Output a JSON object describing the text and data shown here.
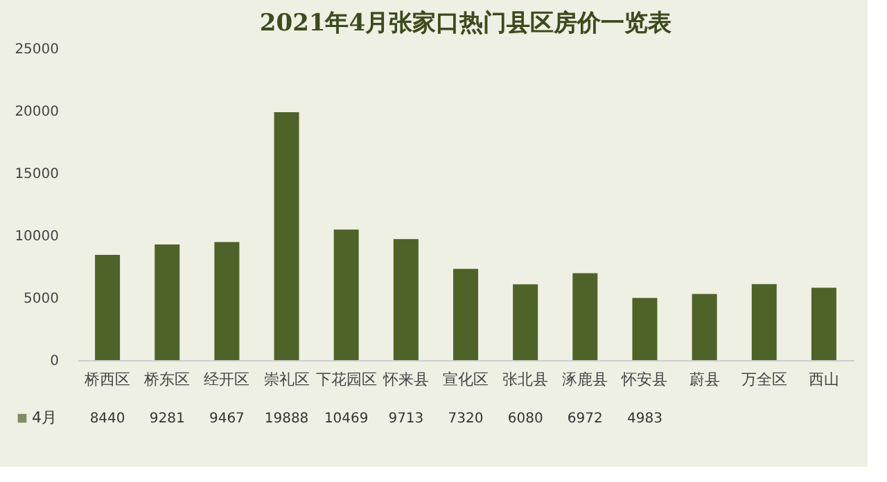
{
  "chart_data": {
    "type": "bar",
    "title": "2021年4月张家口热门县区房价一览表",
    "categories": [
      "桥西区",
      "桥东区",
      "经开区",
      "崇礼区",
      "下花园区",
      "怀来县",
      "宣化区",
      "张北县",
      "涿鹿县",
      "怀安县",
      "蔚县",
      "万全区",
      "西山"
    ],
    "series": [
      {
        "name": "4月",
        "color": "#4f6228",
        "values": [
          8440,
          9281,
          9467,
          19888,
          10469,
          9713,
          7320,
          6080,
          6972,
          4983,
          5300,
          6100,
          5800
        ],
        "value_labels": [
          "8440",
          "9281",
          "9467",
          "19888",
          "10469",
          "9713",
          "7320",
          "6080",
          "6972",
          "4983",
          null,
          null,
          null
        ]
      }
    ],
    "ylim": [
      0,
      25000
    ],
    "yticks": [
      0,
      5000,
      10000,
      15000,
      20000,
      25000
    ],
    "grid": false,
    "legend": "bottom left"
  }
}
